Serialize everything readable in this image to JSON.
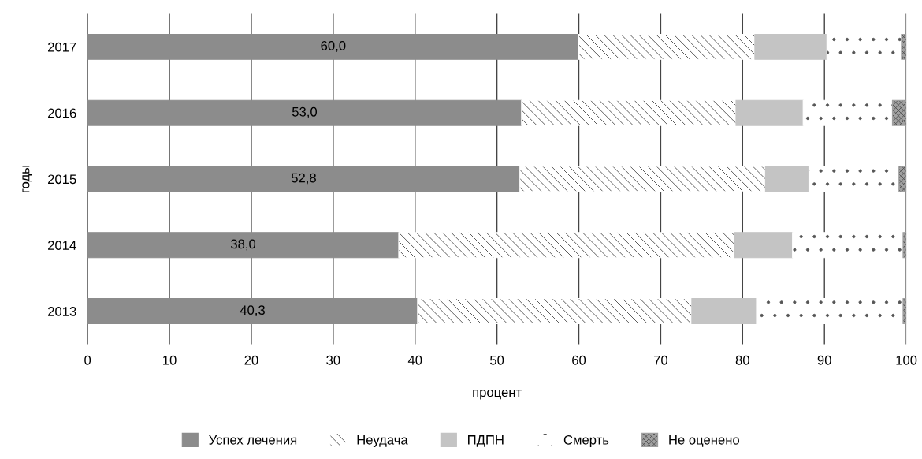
{
  "chart_data": {
    "type": "bar",
    "orientation": "horizontal",
    "stacked": true,
    "xlabel": "процент",
    "ylabel": "годы",
    "categories": [
      "2017",
      "2016",
      "2015",
      "2014",
      "2013"
    ],
    "series": [
      {
        "name": "Успех лечения",
        "color": "#8c8c8c",
        "values": [
          60.0,
          53.0,
          52.8,
          38.0,
          40.3
        ],
        "value_labels": [
          "60,0",
          "53,0",
          "52,8",
          "38,0",
          "40,3"
        ]
      },
      {
        "name": "Неудача",
        "color": "#ffffff",
        "values": [
          21.5,
          26.2,
          30.0,
          41.0,
          33.5
        ]
      },
      {
        "name": "ПДПН",
        "color": "#c4c4c4",
        "values": [
          8.8,
          8.2,
          5.3,
          7.1,
          7.9
        ]
      },
      {
        "name": "Смерть",
        "color": "#ffffff",
        "values": [
          9.1,
          10.9,
          11.0,
          13.5,
          17.9
        ]
      },
      {
        "name": "Не оценено",
        "color": "#a0a0a0",
        "values": [
          0.6,
          1.7,
          0.9,
          0.4,
          0.4
        ]
      }
    ],
    "xlim": [
      0,
      100
    ],
    "xticks": [
      0,
      10,
      20,
      30,
      40,
      50,
      60,
      70,
      80,
      90,
      100
    ],
    "grid": "x",
    "legend": "bottom"
  }
}
